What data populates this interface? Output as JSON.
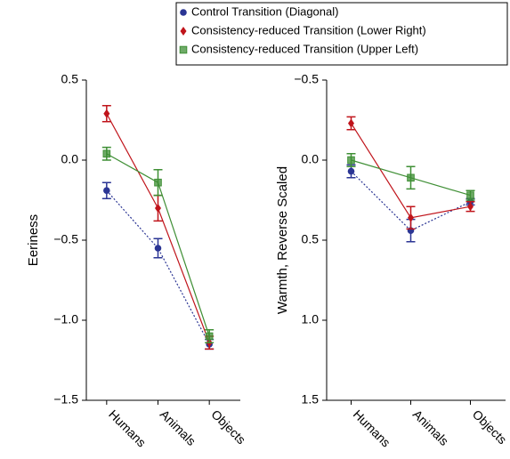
{
  "chart_data": [
    {
      "type": "line",
      "ylabel": "Eeriness",
      "categories": [
        "Humans",
        "Animals",
        "Objects"
      ],
      "ylim": [
        -1.5,
        0.5
      ],
      "yticks": [
        {
          "value": 0.5,
          "label": "0.5"
        },
        {
          "value": 0,
          "label": "0.0"
        },
        {
          "value": -0.5,
          "label": "−0.5"
        },
        {
          "value": -1,
          "label": "−1.0"
        },
        {
          "value": -1.5,
          "label": "−1.5"
        }
      ],
      "y_inverted": false,
      "series": [
        {
          "name": "Control Transition (Diagonal)",
          "color": "#2b3594",
          "marker": "circle",
          "linestyle": "dotted",
          "values": [
            -0.19,
            -0.55,
            -1.15
          ],
          "errors": [
            0.05,
            0.06,
            0.03
          ]
        },
        {
          "name": "Consistency-reduced Transition (Lower Right)",
          "color": "#c0141b",
          "marker": "diamond",
          "linestyle": "solid",
          "values": [
            0.29,
            -0.3,
            -1.14
          ],
          "errors": [
            0.05,
            0.08,
            0.04
          ]
        },
        {
          "name": "Consistency-reduced Transition (Upper Left)",
          "color": "#3f8f35",
          "marker": "square",
          "linestyle": "solid",
          "values": [
            0.04,
            -0.14,
            -1.1
          ],
          "errors": [
            0.04,
            0.08,
            0.04
          ]
        }
      ]
    },
    {
      "type": "line",
      "ylabel": "Warmth, Reverse Scaled",
      "categories": [
        "Humans",
        "Animals",
        "Objects"
      ],
      "ylim": [
        -0.5,
        1.5
      ],
      "yticks": [
        {
          "value": -0.5,
          "label": "−0.5"
        },
        {
          "value": 0,
          "label": "0.0"
        },
        {
          "value": 0.5,
          "label": "0.5"
        },
        {
          "value": 1,
          "label": "1.0"
        },
        {
          "value": 1.5,
          "label": "1.5"
        }
      ],
      "y_inverted": true,
      "series": [
        {
          "color": "#2b3594",
          "marker": "circle",
          "linestyle": "dotted",
          "values": [
            0.07,
            0.44,
            0.26
          ],
          "errors": [
            0.04,
            0.07,
            0.02
          ]
        },
        {
          "color": "#c0141b",
          "marker": "diamond",
          "linestyle": "solid",
          "values": [
            -0.23,
            0.36,
            0.29
          ],
          "errors": [
            0.04,
            0.07,
            0.03
          ]
        },
        {
          "color": "#3f8f35",
          "marker": "square",
          "linestyle": "solid",
          "values": [
            0.0,
            0.11,
            0.22
          ],
          "errors": [
            0.04,
            0.07,
            0.03
          ]
        }
      ]
    }
  ]
}
